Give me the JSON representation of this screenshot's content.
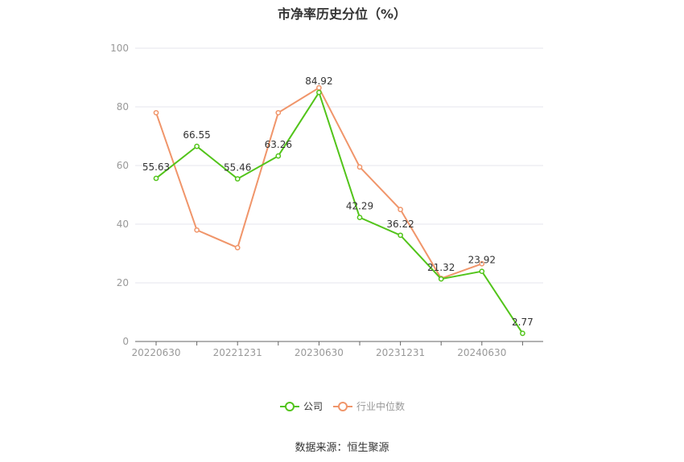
{
  "chart_data": {
    "type": "line",
    "title": "市净率历史分位（%）",
    "x_ticks": [
      "20220630",
      "20221231",
      "20230630",
      "20231231",
      "20240630"
    ],
    "categories": [
      "2022-06-30",
      "2022-09-30",
      "2022-12-31",
      "2023-03-31",
      "2023-06-30",
      "2023-09-30",
      "2023-12-31",
      "2024-03-31",
      "2024-06-30",
      "2024-09-30"
    ],
    "y_ticks": [
      0,
      20,
      40,
      60,
      80,
      100
    ],
    "ylim": [
      0,
      100
    ],
    "series": [
      {
        "name": "公司",
        "color": "#52c41a",
        "values": [
          55.63,
          66.55,
          55.46,
          63.26,
          84.92,
          42.29,
          36.22,
          21.32,
          23.92,
          2.77
        ],
        "labels": [
          "55.63",
          "66.55",
          "55.46",
          "63.26",
          "84.92",
          "42.29",
          "36.22",
          "21.32",
          "23.92",
          "2.77"
        ]
      },
      {
        "name": "行业中位数",
        "color": "#f0956a",
        "values": [
          78,
          38,
          32,
          78,
          86.5,
          59.5,
          45,
          21.5,
          26.5,
          null
        ]
      }
    ],
    "legend_position": "bottom",
    "grid": true
  },
  "source": "数据来源：恒生聚源"
}
